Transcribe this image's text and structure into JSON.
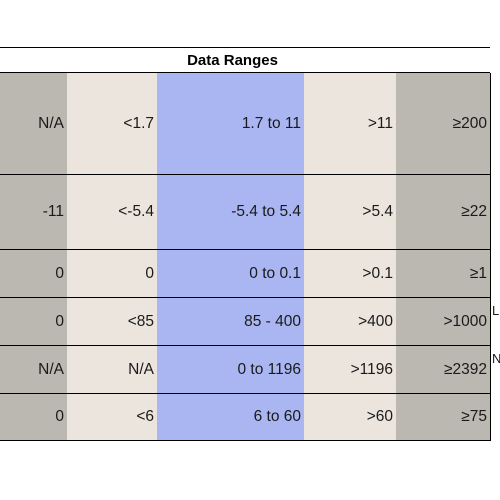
{
  "table": {
    "title": "Data Ranges",
    "rows": [
      [
        "N/A",
        "<1.7",
        "1.7 to 11",
        ">11",
        "≥200"
      ],
      [
        "-11",
        "<-5.4",
        "-5.4 to 5.4",
        ">5.4",
        "≥22"
      ],
      [
        "0",
        "0",
        "0 to 0.1",
        ">0.1",
        "≥1"
      ],
      [
        "0",
        "<85",
        "85 - 400",
        ">400",
        ">1000"
      ],
      [
        "N/A",
        "N/A",
        "0 to 1196",
        ">1196",
        "≥2392"
      ],
      [
        "0",
        "<6",
        "6  to 60",
        ">60",
        "≥75"
      ]
    ]
  },
  "side_notes": {
    "row4": "L",
    "row5": "N"
  },
  "colors": {
    "gray": "#bbb8b1",
    "beige": "#ebe5dd",
    "blue": "#a9b6f1"
  }
}
